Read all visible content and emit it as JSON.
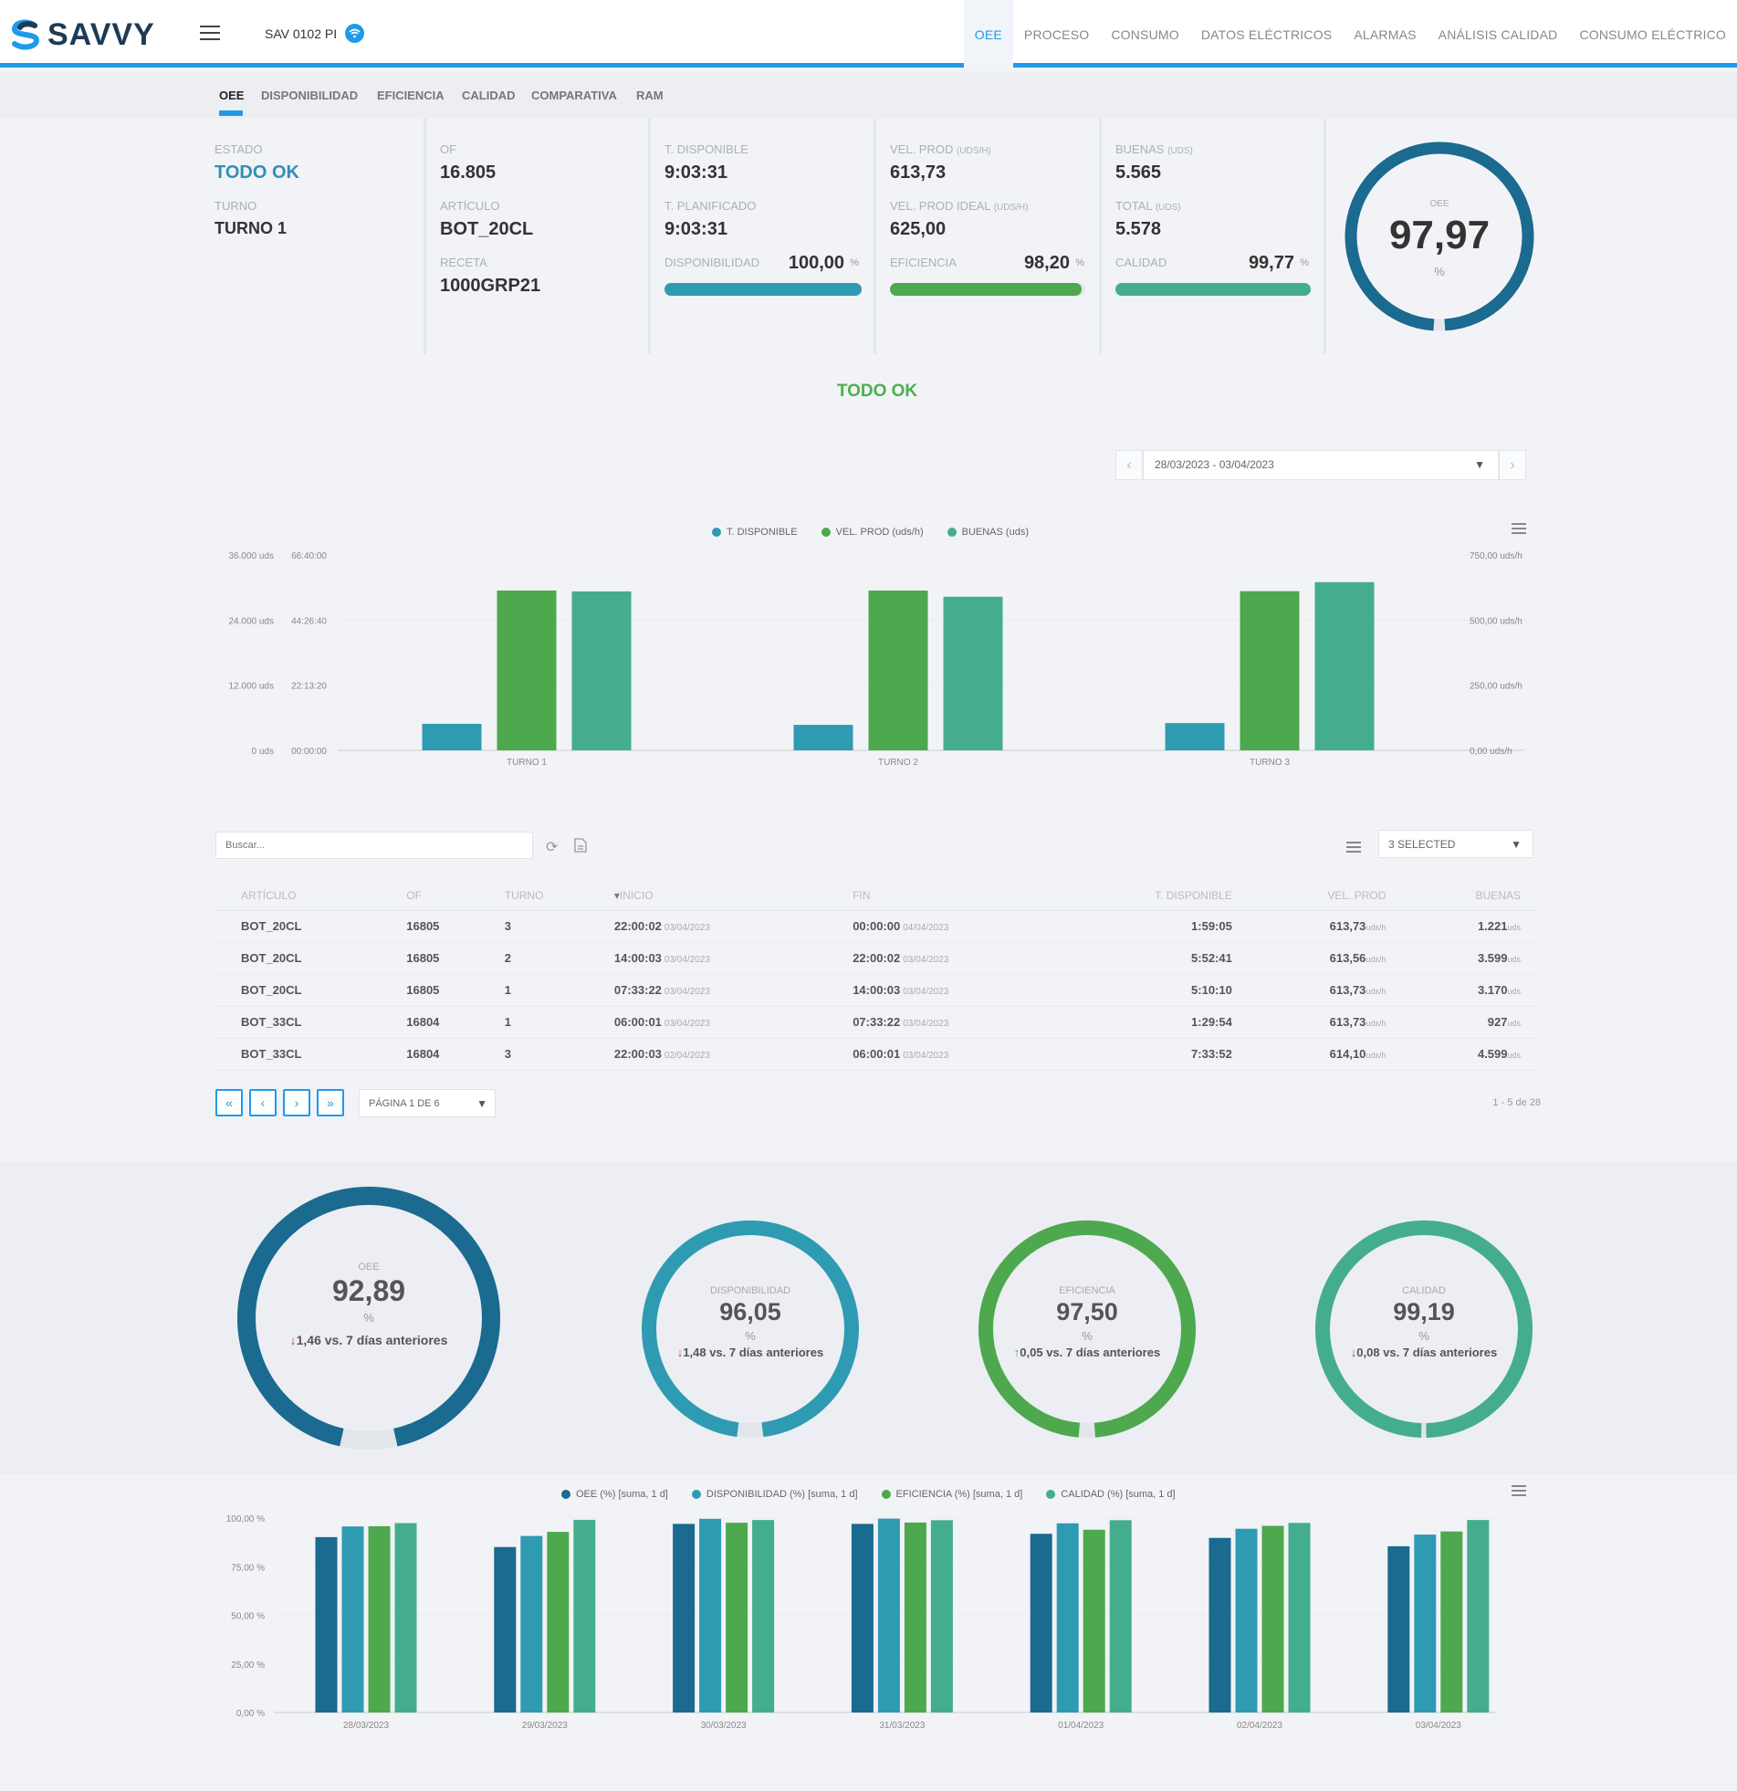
{
  "header": {
    "logo_text": "SAVVY",
    "device_name": "SAV 0102 PI",
    "nav": [
      "OEE",
      "PROCESO",
      "CONSUMO",
      "DATOS ELÉCTRICOS",
      "ALARMAS",
      "ANÁLISIS CALIDAD",
      "CONSUMO ELÉCTRICO"
    ],
    "active_nav": "OEE"
  },
  "subtabs": [
    "OEE",
    "DISPONIBILIDAD",
    "EFICIENCIA",
    "CALIDAD",
    "COMPARATIVA",
    "RAM"
  ],
  "kpis": {
    "estado_label": "ESTADO",
    "estado_value": "TODO OK",
    "turno_label": "TURNO",
    "turno_value": "TURNO 1",
    "of_label": "OF",
    "of_value": "16.805",
    "articulo_label": "ARTÍCULO",
    "articulo_value": "BOT_20CL",
    "receta_label": "RECETA",
    "receta_value": "1000GRP21",
    "t_disponible_label": "T. DISPONIBLE",
    "t_disponible_value": "9:03:31",
    "t_planificado_label": "T. PLANIFICADO",
    "t_planificado_value": "9:03:31",
    "disponibilidad_label": "DISPONIBILIDAD",
    "disponibilidad_value": "100,00",
    "disponibilidad_fraction": 1.0,
    "vel_prod_label": "VEL. PROD",
    "vel_prod_unit": "(UDS/H)",
    "vel_prod_value": "613,73",
    "vel_prod_ideal_label": "VEL. PROD IDEAL",
    "vel_prod_ideal_unit": "(UDS/H)",
    "vel_prod_ideal_value": "625,00",
    "eficiencia_label": "EFICIENCIA",
    "eficiencia_value": "98,20",
    "eficiencia_fraction": 0.982,
    "buenas_label": "BUENAS",
    "buenas_unit": "(UDS)",
    "buenas_value": "5.565",
    "total_label": "TOTAL",
    "total_unit": "(UDS)",
    "total_value": "5.578",
    "calidad_label": "CALIDAD",
    "calidad_value": "99,77",
    "calidad_fraction": 0.9977,
    "pct_sign": "%",
    "oee_label": "OEE",
    "oee_value": "97,97",
    "oee_fraction": 0.9797,
    "oee_unit": "%"
  },
  "status_text": "TODO OK",
  "date_range": "28/03/2023 - 03/04/2023",
  "colors": {
    "accent": "#1e9be8",
    "oee": "#1b6a8f",
    "disponibilidad": "#2f9bb2",
    "eficiencia": "#4da84e",
    "calidad": "#44ad8d",
    "status_ok": "#4caf50",
    "delta_down": "#e53935"
  },
  "chart_data": [
    {
      "type": "bar",
      "categories": [
        "TURNO 1",
        "TURNO 2",
        "TURNO 3"
      ],
      "series": [
        {
          "name": "T. DISPONIBLE",
          "axis": "time",
          "values": [
            "9:03:31",
            "8:42:10",
            "9:18:40"
          ],
          "color": "#2f9bb2"
        },
        {
          "name": "VEL. PROD (uds/h)",
          "axis": "right",
          "values": [
            613.73,
            613.56,
            611.2
          ],
          "color": "#4da84e"
        },
        {
          "name": "BUENAS (uds)",
          "axis": "left",
          "values": [
            29300,
            28300,
            31000
          ],
          "color": "#44ad8d"
        }
      ],
      "left_axis_ticks": [
        "0 uds",
        "12.000 uds",
        "24.000 uds",
        "36.000 uds"
      ],
      "time_axis_ticks": [
        "00:00:00",
        "22:13:20",
        "44:26:40",
        "66:40:00"
      ],
      "right_axis_ticks": [
        "0,00 uds/h",
        "250,00 uds/h",
        "500,00 uds/h",
        "750,00 uds/h"
      ],
      "ylim_left": [
        0,
        36000
      ],
      "ylim_right": [
        0,
        750
      ],
      "grid": true,
      "legend": "top"
    },
    {
      "type": "bar",
      "categories": [
        "28/03/2023",
        "29/03/2023",
        "30/03/2023",
        "31/03/2023",
        "01/04/2023",
        "02/04/2023",
        "03/04/2023"
      ],
      "series": [
        {
          "name": "OEE (%) [suma, 1 d]",
          "values": [
            90.2,
            85.1,
            97.0,
            97.0,
            91.9,
            89.8,
            85.5
          ],
          "color": "#1b6a8f"
        },
        {
          "name": "DISPONIBILIDAD (%) [suma, 1 d]",
          "values": [
            95.7,
            90.8,
            99.6,
            99.7,
            97.3,
            94.5,
            91.5
          ],
          "color": "#2f9bb2"
        },
        {
          "name": "EFICIENCIA (%) [suma, 1 d]",
          "values": [
            95.8,
            92.9,
            97.6,
            97.7,
            94.0,
            96.0,
            93.1
          ],
          "color": "#4da84e"
        },
        {
          "name": "CALIDAD (%) [suma, 1 d]",
          "values": [
            97.4,
            99.1,
            99.0,
            98.9,
            98.9,
            97.5,
            99.0
          ],
          "color": "#44ad8d"
        }
      ],
      "yticks": [
        "0,00 %",
        "25,00 %",
        "50,00 %",
        "75,00 %",
        "100,00 %"
      ],
      "ylim": [
        0,
        100
      ],
      "grid": true,
      "legend": "top"
    }
  ],
  "table": {
    "search_placeholder": "Buscar...",
    "columns_select": "3 SELECTED",
    "headers": [
      "ARTÍCULO",
      "OF",
      "TURNO",
      "INICIO",
      "FIN",
      "T. DISPONIBLE",
      "VEL. PROD",
      "BUENAS"
    ],
    "rows": [
      {
        "articulo": "BOT_20CL",
        "of": "16805",
        "turno": "3",
        "inicio": "22:00:02",
        "inicio_fecha": "03/04/2023",
        "fin": "00:00:00",
        "fin_fecha": "04/04/2023",
        "t_disp": "1:59:05",
        "vel": "613,73",
        "vel_unit": "uds/h",
        "buenas": "1.221",
        "buenas_unit": "uds"
      },
      {
        "articulo": "BOT_20CL",
        "of": "16805",
        "turno": "2",
        "inicio": "14:00:03",
        "inicio_fecha": "03/04/2023",
        "fin": "22:00:02",
        "fin_fecha": "03/04/2023",
        "t_disp": "5:52:41",
        "vel": "613,56",
        "vel_unit": "uds/h",
        "buenas": "3.599",
        "buenas_unit": "uds"
      },
      {
        "articulo": "BOT_20CL",
        "of": "16805",
        "turno": "1",
        "inicio": "07:33:22",
        "inicio_fecha": "03/04/2023",
        "fin": "14:00:03",
        "fin_fecha": "03/04/2023",
        "t_disp": "5:10:10",
        "vel": "613,73",
        "vel_unit": "uds/h",
        "buenas": "3.170",
        "buenas_unit": "uds"
      },
      {
        "articulo": "BOT_33CL",
        "of": "16804",
        "turno": "1",
        "inicio": "06:00:01",
        "inicio_fecha": "03/04/2023",
        "fin": "07:33:22",
        "fin_fecha": "03/04/2023",
        "t_disp": "1:29:54",
        "vel": "613,73",
        "vel_unit": "uds/h",
        "buenas": "927",
        "buenas_unit": "uds"
      },
      {
        "articulo": "BOT_33CL",
        "of": "16804",
        "turno": "3",
        "inicio": "22:00:03",
        "inicio_fecha": "02/04/2023",
        "fin": "06:00:01",
        "fin_fecha": "03/04/2023",
        "t_disp": "7:33:52",
        "vel": "614,10",
        "vel_unit": "uds/h",
        "buenas": "4.599",
        "buenas_unit": "uds"
      }
    ],
    "page_select": "PÁGINA 1 DE 6",
    "page_count": "1 - 5 de 28"
  },
  "gauges": [
    {
      "label": "OEE",
      "value": "92,89",
      "fraction": 0.9289,
      "unit": "%",
      "delta_dir": "down",
      "delta": "1,46 vs. 7 días anteriores",
      "color": "#1b6a8f"
    },
    {
      "label": "DISPONIBILIDAD",
      "value": "96,05",
      "fraction": 0.9605,
      "unit": "%",
      "delta_dir": "down",
      "delta": "1,48 vs. 7 días anteriores",
      "color": "#2f9bb2"
    },
    {
      "label": "EFICIENCIA",
      "value": "97,50",
      "fraction": 0.975,
      "unit": "%",
      "delta_dir": "up",
      "delta": "0,05 vs. 7 días anteriores",
      "color": "#4da84e"
    },
    {
      "label": "CALIDAD",
      "value": "99,19",
      "fraction": 0.9919,
      "unit": "%",
      "delta_dir": "down",
      "delta": "0,08 vs. 7 días anteriores",
      "color": "#44ad8d"
    }
  ]
}
